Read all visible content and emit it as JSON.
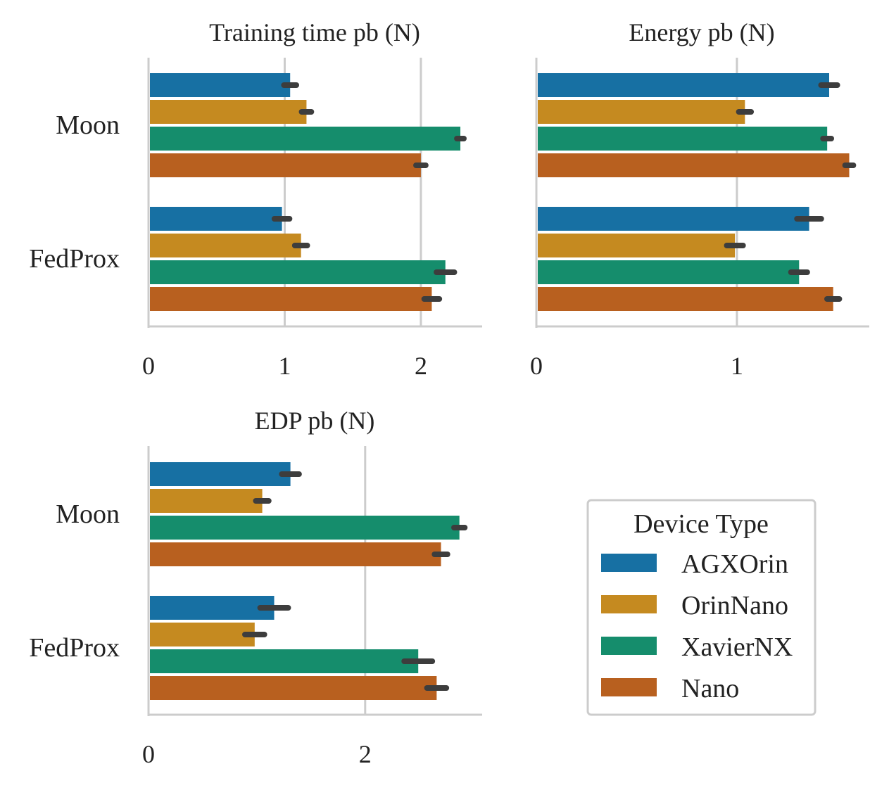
{
  "chart_data": [
    {
      "type": "bar",
      "orientation": "horizontal",
      "title": "Training time pb (N)",
      "categories": [
        "Moon",
        "FedProx"
      ],
      "xlim": [
        0,
        2.45
      ],
      "xticks": [
        0,
        1,
        2
      ],
      "xtick_labels": [
        "0",
        "1",
        "2"
      ],
      "grid": "vertical",
      "series": [
        {
          "name": "AGXOrin",
          "values": [
            1.04,
            0.98
          ],
          "err": [
            0.03,
            0.04
          ]
        },
        {
          "name": "OrinNano",
          "values": [
            1.16,
            1.12
          ],
          "err": [
            0.02,
            0.03
          ]
        },
        {
          "name": "XavierNX",
          "values": [
            2.29,
            2.18
          ],
          "err": [
            0.01,
            0.05
          ]
        },
        {
          "name": "Nano",
          "values": [
            2.0,
            2.08
          ],
          "err": [
            0.02,
            0.04
          ]
        }
      ]
    },
    {
      "type": "bar",
      "orientation": "horizontal",
      "title": "Energy pb (N)",
      "categories": [
        "Moon",
        "FedProx"
      ],
      "xlim": [
        0,
        1.66
      ],
      "xticks": [
        0,
        1
      ],
      "xtick_labels": [
        "0",
        "1"
      ],
      "grid": "vertical",
      "series": [
        {
          "name": "AGXOrin",
          "values": [
            1.46,
            1.36
          ],
          "err": [
            0.03,
            0.05
          ]
        },
        {
          "name": "OrinNano",
          "values": [
            1.04,
            0.99
          ],
          "err": [
            0.02,
            0.03
          ]
        },
        {
          "name": "XavierNX",
          "values": [
            1.45,
            1.31
          ],
          "err": [
            0.01,
            0.03
          ]
        },
        {
          "name": "Nano",
          "values": [
            1.56,
            1.48
          ],
          "err": [
            0.01,
            0.02
          ]
        }
      ]
    },
    {
      "type": "bar",
      "orientation": "horizontal",
      "title": "EDP pb (N)",
      "categories": [
        "Moon",
        "FedProx"
      ],
      "xlim": [
        0,
        3.08
      ],
      "xticks": [
        0,
        2
      ],
      "xtick_labels": [
        "0",
        "2"
      ],
      "grid": "vertical",
      "series": [
        {
          "name": "AGXOrin",
          "values": [
            1.31,
            1.16
          ],
          "err": [
            0.06,
            0.11
          ]
        },
        {
          "name": "OrinNano",
          "values": [
            1.05,
            0.98
          ],
          "err": [
            0.04,
            0.07
          ]
        },
        {
          "name": "XavierNX",
          "values": [
            2.87,
            2.49
          ],
          "err": [
            0.03,
            0.11
          ]
        },
        {
          "name": "Nano",
          "values": [
            2.7,
            2.66
          ],
          "err": [
            0.04,
            0.07
          ]
        }
      ]
    }
  ],
  "legend": {
    "title": "Device Type",
    "placement": "bottom-right",
    "items": [
      {
        "label": "AGXOrin",
        "color": "#1770a3"
      },
      {
        "label": "OrinNano",
        "color": "#c58a20"
      },
      {
        "label": "XavierNX",
        "color": "#158d6c"
      },
      {
        "label": "Nano",
        "color": "#b8601f"
      }
    ]
  },
  "colors": {
    "series": [
      "#1770a3",
      "#c58a20",
      "#158d6c",
      "#b8601f"
    ],
    "errorbar": "#3d3d3d",
    "axis": "#cccccc",
    "grid": "#cccccc"
  }
}
